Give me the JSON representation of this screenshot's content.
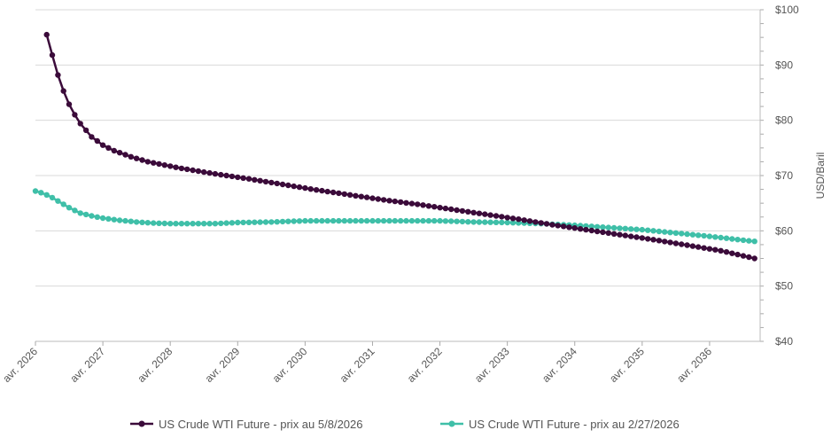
{
  "chart_data": {
    "type": "line",
    "title": "",
    "ylabel": "USD/Baril",
    "ylim": [
      40,
      100
    ],
    "yticks": [
      "$40",
      "$50",
      "$60",
      "$70",
      "$80",
      "$90",
      "$100"
    ],
    "xticks": [
      "avr. 2026",
      "avr. 2027",
      "avr. 2028",
      "avr. 2029",
      "avr. 2030",
      "avr. 2031",
      "avr. 2032",
      "avr. 2033",
      "avr. 2034",
      "avr. 2035",
      "avr. 2036"
    ],
    "x_start": "2026-04",
    "x_end": "2037-01",
    "grid": true,
    "legend_position": "bottom",
    "series": [
      {
        "name": "US Crude WTI Future - prix au 5/8/2026",
        "color": "#3b0b3a",
        "start": "2026-06",
        "end": "2036-12",
        "keypoints": [
          [
            0,
            95.5
          ],
          [
            1,
            91.8
          ],
          [
            2,
            88.2
          ],
          [
            3,
            85.3
          ],
          [
            4,
            82.9
          ],
          [
            5,
            81.0
          ],
          [
            6,
            79.4
          ],
          [
            8,
            77.0
          ],
          [
            10,
            75.5
          ],
          [
            12,
            74.5
          ],
          [
            15,
            73.4
          ],
          [
            18,
            72.5
          ],
          [
            21,
            71.9
          ],
          [
            24,
            71.3
          ],
          [
            30,
            70.3
          ],
          [
            36,
            69.4
          ],
          [
            42,
            68.4
          ],
          [
            48,
            67.4
          ],
          [
            54,
            66.5
          ],
          [
            60,
            65.6
          ],
          [
            66,
            64.8
          ],
          [
            72,
            63.9
          ],
          [
            78,
            63.0
          ],
          [
            84,
            62.1
          ],
          [
            90,
            61.1
          ],
          [
            96,
            60.2
          ],
          [
            102,
            59.3
          ],
          [
            108,
            58.4
          ],
          [
            114,
            57.4
          ],
          [
            120,
            56.4
          ],
          [
            126,
            55.0
          ]
        ]
      },
      {
        "name": "US Crude WTI Future - prix au 2/27/2026",
        "color": "#3fbfa8",
        "start": "2026-04",
        "end": "2036-12",
        "keypoints": [
          [
            0,
            67.2
          ],
          [
            1,
            66.9
          ],
          [
            2,
            66.5
          ],
          [
            3,
            66.0
          ],
          [
            4,
            65.4
          ],
          [
            5,
            64.8
          ],
          [
            6,
            64.2
          ],
          [
            7,
            63.7
          ],
          [
            8,
            63.2
          ],
          [
            10,
            62.7
          ],
          [
            12,
            62.3
          ],
          [
            15,
            61.9
          ],
          [
            18,
            61.6
          ],
          [
            21,
            61.4
          ],
          [
            24,
            61.3
          ],
          [
            28,
            61.3
          ],
          [
            32,
            61.3
          ],
          [
            36,
            61.5
          ],
          [
            42,
            61.6
          ],
          [
            48,
            61.8
          ],
          [
            54,
            61.8
          ],
          [
            60,
            61.8
          ],
          [
            66,
            61.8
          ],
          [
            72,
            61.8
          ],
          [
            78,
            61.6
          ],
          [
            84,
            61.5
          ],
          [
            90,
            61.3
          ],
          [
            96,
            61.0
          ],
          [
            102,
            60.6
          ],
          [
            108,
            60.2
          ],
          [
            114,
            59.6
          ],
          [
            120,
            59.0
          ],
          [
            126,
            58.3
          ],
          [
            132,
            57.6
          ],
          [
            128,
            58.1
          ]
        ]
      }
    ]
  }
}
